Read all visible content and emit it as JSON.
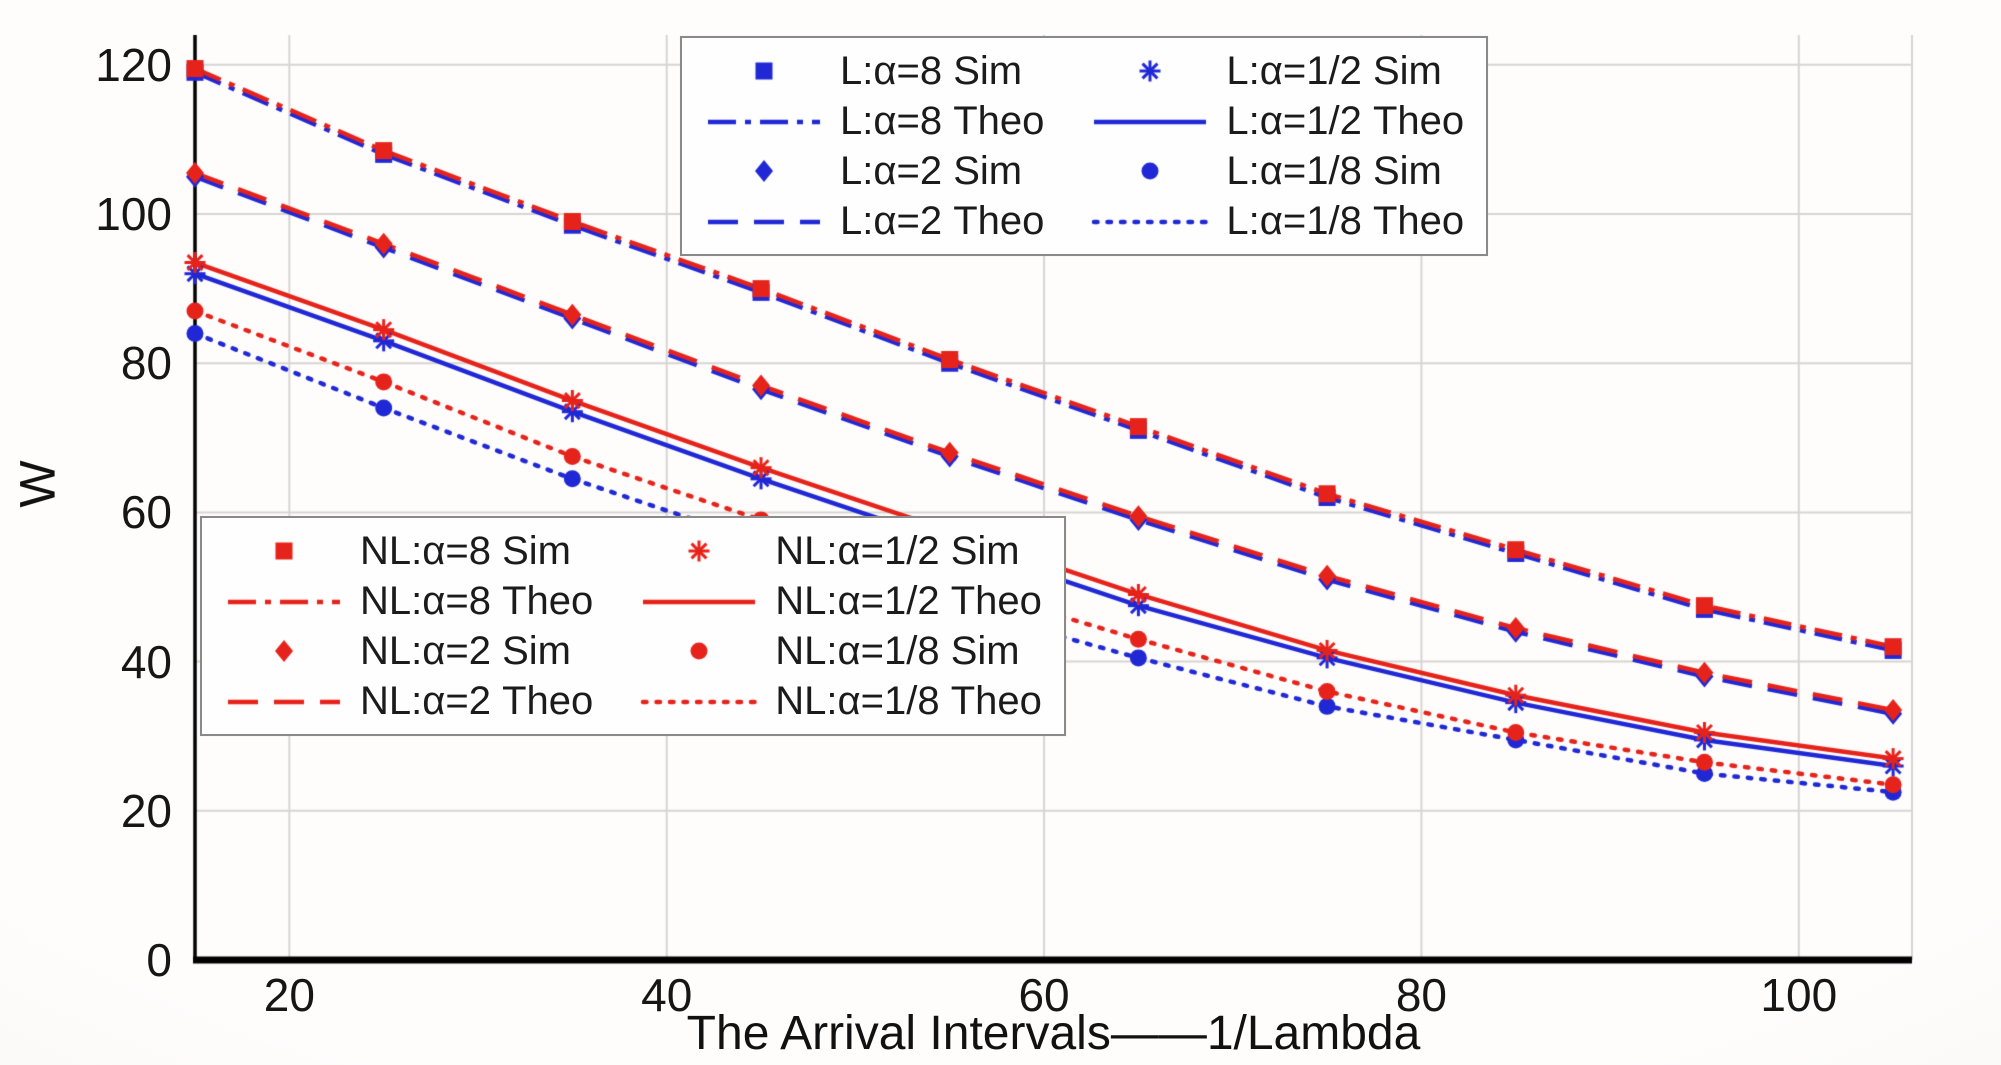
{
  "chart_data": {
    "type": "line",
    "title": "",
    "xlabel": "The Arrival Intervals——1/Lambda",
    "ylabel": "W",
    "xlim": [
      15,
      106
    ],
    "ylim": [
      0,
      124
    ],
    "xticks": [
      20,
      40,
      60,
      80,
      100
    ],
    "yticks": [
      0,
      20,
      40,
      60,
      80,
      100,
      120
    ],
    "grid": true,
    "colors": {
      "L": "#2028d6",
      "NL": "#e6231b"
    },
    "x": [
      15,
      25,
      35,
      45,
      55,
      65,
      75,
      85,
      95,
      105
    ],
    "series": [
      {
        "name": "L:α=8 Sim",
        "group": "L",
        "kind": "marker",
        "marker": "square",
        "values": [
          119,
          108,
          98.5,
          89.5,
          80,
          71,
          62,
          54.5,
          47,
          41.5
        ]
      },
      {
        "name": "L:α=8 Theo",
        "group": "L",
        "kind": "line",
        "dash": "dashdot",
        "values": [
          119,
          108,
          98.5,
          89.5,
          80,
          71,
          62,
          54.5,
          47,
          41.5
        ]
      },
      {
        "name": "L:α=2 Sim",
        "group": "L",
        "kind": "marker",
        "marker": "diamond",
        "values": [
          105,
          95.5,
          86,
          76.5,
          67.5,
          59,
          51,
          44,
          38,
          33
        ]
      },
      {
        "name": "L:α=2 Theo",
        "group": "L",
        "kind": "line",
        "dash": "dashed",
        "values": [
          105,
          95.5,
          86,
          76.5,
          67.5,
          59,
          51,
          44,
          38,
          33
        ]
      },
      {
        "name": "L:α=1/2 Sim",
        "group": "L",
        "kind": "marker",
        "marker": "asterisk",
        "values": [
          92,
          83,
          73.5,
          64.5,
          56,
          47.5,
          40.5,
          34.5,
          29.5,
          26
        ]
      },
      {
        "name": "L:α=1/2 Theo",
        "group": "L",
        "kind": "line",
        "dash": "solid",
        "values": [
          92,
          83,
          73.5,
          64.5,
          56,
          47.5,
          40.5,
          34.5,
          29.5,
          26
        ]
      },
      {
        "name": "L:α=1/8 Sim",
        "group": "L",
        "kind": "marker",
        "marker": "circle",
        "values": [
          84,
          74,
          64.5,
          56,
          47.5,
          40.5,
          34,
          29.5,
          25,
          22.5
        ]
      },
      {
        "name": "L:α=1/8 Theo",
        "group": "L",
        "kind": "line",
        "dash": "dotted",
        "values": [
          84,
          74,
          64.5,
          56,
          47.5,
          40.5,
          34,
          29.5,
          25,
          22.5
        ]
      },
      {
        "name": "NL:α=8 Sim",
        "group": "NL",
        "kind": "marker",
        "marker": "square",
        "values": [
          119.5,
          108.5,
          99,
          90,
          80.5,
          71.5,
          62.5,
          55,
          47.5,
          42
        ]
      },
      {
        "name": "NL:α=8 Theo",
        "group": "NL",
        "kind": "line",
        "dash": "dashdot",
        "values": [
          119.5,
          108.5,
          99,
          90,
          80.5,
          71.5,
          62.5,
          55,
          47.5,
          42
        ]
      },
      {
        "name": "NL:α=2 Sim",
        "group": "NL",
        "kind": "marker",
        "marker": "diamond",
        "values": [
          105.5,
          96,
          86.5,
          77,
          68,
          59.5,
          51.5,
          44.5,
          38.5,
          33.5
        ]
      },
      {
        "name": "NL:α=2 Theo",
        "group": "NL",
        "kind": "line",
        "dash": "dashed",
        "values": [
          105.5,
          96,
          86.5,
          77,
          68,
          59.5,
          51.5,
          44.5,
          38.5,
          33.5
        ]
      },
      {
        "name": "NL:α=1/2 Sim",
        "group": "NL",
        "kind": "marker",
        "marker": "asterisk",
        "values": [
          93.5,
          84.5,
          75,
          66,
          57.5,
          49,
          41.5,
          35.5,
          30.5,
          27
        ]
      },
      {
        "name": "NL:α=1/2 Theo",
        "group": "NL",
        "kind": "line",
        "dash": "solid",
        "values": [
          93.5,
          84.5,
          75,
          66,
          57.5,
          49,
          41.5,
          35.5,
          30.5,
          27
        ]
      },
      {
        "name": "NL:α=1/8 Sim",
        "group": "NL",
        "kind": "marker",
        "marker": "circle",
        "values": [
          87,
          77.5,
          67.5,
          59,
          50.5,
          43,
          36,
          30.5,
          26.5,
          23.5
        ]
      },
      {
        "name": "NL:α=1/8 Theo",
        "group": "NL",
        "kind": "line",
        "dash": "dotted",
        "values": [
          87,
          77.5,
          67.5,
          59,
          50.5,
          43,
          36,
          30.5,
          26.5,
          23.5
        ]
      }
    ],
    "legends": [
      {
        "name": "L",
        "position": "top-right",
        "entries": [
          "L:α=8 Sim",
          "L:α=1/2 Sim",
          "L:α=8 Theo",
          "L:α=1/2 Theo",
          "L:α=2 Sim",
          "L:α=1/8 Sim",
          "L:α=2 Theo",
          "L:α=1/8 Theo"
        ]
      },
      {
        "name": "NL",
        "position": "bottom-left",
        "entries": [
          "NL:α=8 Sim",
          "NL:α=1/2 Sim",
          "NL:α=8 Theo",
          "NL:α=1/2 Theo",
          "NL:α=2 Sim",
          "NL:α=1/8 Sim",
          "NL:α=2 Theo",
          "NL:α=1/8 Theo"
        ]
      }
    ]
  }
}
